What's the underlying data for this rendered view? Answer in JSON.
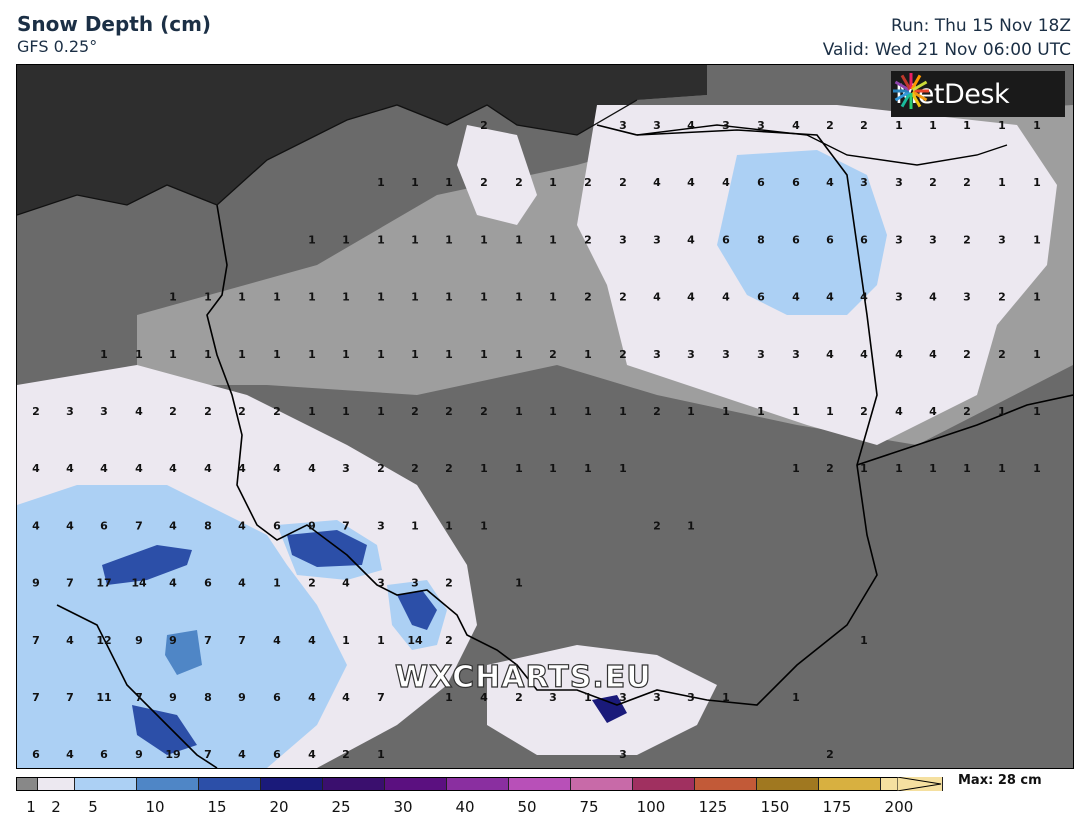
{
  "header": {
    "title": "Snow Depth (cm)",
    "model": "GFS 0.25°",
    "run": "Run: Thu 15 Nov 18Z",
    "valid": "Valid: Wed 21 Nov 06:00 UTC"
  },
  "logo": {
    "text": "MetDesk"
  },
  "watermark": "WXCHARTS.EU",
  "legend": {
    "max_label": "Max: 28 cm",
    "ticks": [
      "1",
      "2",
      "5",
      "10",
      "15",
      "20",
      "25",
      "30",
      "40",
      "50",
      "75",
      "100",
      "125",
      "150",
      "175",
      "200"
    ],
    "colors": [
      "#888888",
      "#ece8f0",
      "#acd0f4",
      "#4f86c6",
      "#2c4fa8",
      "#1a1a7a",
      "#3a0f6e",
      "#5b1080",
      "#8a2fa0",
      "#b850b8",
      "#c86aa8",
      "#a03060",
      "#c25a38",
      "#a07820",
      "#d8b040",
      "#f5e0a0"
    ]
  },
  "map": {
    "rows": [
      {
        "y": 2,
        "vals": [
          [
            483,
            "2"
          ],
          [
            622,
            "3"
          ],
          [
            656,
            "3"
          ],
          [
            690,
            "4"
          ],
          [
            725,
            "3"
          ],
          [
            760,
            "3"
          ],
          [
            795,
            "4"
          ],
          [
            829,
            "2"
          ],
          [
            863,
            "2"
          ],
          [
            898,
            "1"
          ],
          [
            932,
            "1"
          ],
          [
            966,
            "1"
          ],
          [
            1001,
            "1"
          ],
          [
            1036,
            "1"
          ]
        ]
      },
      {
        "y": 3,
        "vals": [
          [
            380,
            "1"
          ],
          [
            414,
            "1"
          ],
          [
            448,
            "1"
          ],
          [
            483,
            "2"
          ],
          [
            518,
            "2"
          ],
          [
            552,
            "1"
          ],
          [
            587,
            "2"
          ],
          [
            622,
            "2"
          ],
          [
            656,
            "4"
          ],
          [
            690,
            "4"
          ],
          [
            725,
            "4"
          ],
          [
            760,
            "6"
          ],
          [
            795,
            "6"
          ],
          [
            829,
            "4"
          ],
          [
            863,
            "3"
          ],
          [
            898,
            "3"
          ],
          [
            932,
            "2"
          ],
          [
            966,
            "2"
          ],
          [
            1001,
            "1"
          ],
          [
            1036,
            "1"
          ]
        ]
      },
      {
        "y": 4,
        "vals": [
          [
            311,
            "1"
          ],
          [
            345,
            "1"
          ],
          [
            380,
            "1"
          ],
          [
            414,
            "1"
          ],
          [
            448,
            "1"
          ],
          [
            483,
            "1"
          ],
          [
            518,
            "1"
          ],
          [
            552,
            "1"
          ],
          [
            587,
            "2"
          ],
          [
            622,
            "3"
          ],
          [
            656,
            "3"
          ],
          [
            690,
            "4"
          ],
          [
            725,
            "6"
          ],
          [
            760,
            "8"
          ],
          [
            795,
            "6"
          ],
          [
            829,
            "6"
          ],
          [
            863,
            "6"
          ],
          [
            898,
            "3"
          ],
          [
            932,
            "3"
          ],
          [
            966,
            "2"
          ],
          [
            1001,
            "3"
          ],
          [
            1036,
            "1"
          ]
        ]
      },
      {
        "y": 5,
        "vals": [
          [
            172,
            "1"
          ],
          [
            207,
            "1"
          ],
          [
            241,
            "1"
          ],
          [
            276,
            "1"
          ],
          [
            311,
            "1"
          ],
          [
            345,
            "1"
          ],
          [
            380,
            "1"
          ],
          [
            414,
            "1"
          ],
          [
            448,
            "1"
          ],
          [
            483,
            "1"
          ],
          [
            518,
            "1"
          ],
          [
            552,
            "1"
          ],
          [
            587,
            "2"
          ],
          [
            622,
            "2"
          ],
          [
            656,
            "4"
          ],
          [
            690,
            "4"
          ],
          [
            725,
            "4"
          ],
          [
            760,
            "6"
          ],
          [
            795,
            "4"
          ],
          [
            829,
            "4"
          ],
          [
            863,
            "4"
          ],
          [
            898,
            "3"
          ],
          [
            932,
            "4"
          ],
          [
            966,
            "3"
          ],
          [
            1001,
            "2"
          ],
          [
            1036,
            "1"
          ]
        ]
      },
      {
        "y": 6,
        "vals": [
          [
            103,
            "1"
          ],
          [
            138,
            "1"
          ],
          [
            172,
            "1"
          ],
          [
            207,
            "1"
          ],
          [
            241,
            "1"
          ],
          [
            276,
            "1"
          ],
          [
            311,
            "1"
          ],
          [
            345,
            "1"
          ],
          [
            380,
            "1"
          ],
          [
            414,
            "1"
          ],
          [
            448,
            "1"
          ],
          [
            483,
            "1"
          ],
          [
            518,
            "1"
          ],
          [
            552,
            "2"
          ],
          [
            587,
            "1"
          ],
          [
            622,
            "2"
          ],
          [
            656,
            "3"
          ],
          [
            690,
            "3"
          ],
          [
            725,
            "3"
          ],
          [
            760,
            "3"
          ],
          [
            795,
            "3"
          ],
          [
            829,
            "4"
          ],
          [
            863,
            "4"
          ],
          [
            898,
            "4"
          ],
          [
            932,
            "4"
          ],
          [
            966,
            "2"
          ],
          [
            1001,
            "2"
          ],
          [
            1036,
            "1"
          ]
        ]
      },
      {
        "y": 7,
        "vals": [
          [
            35,
            "2"
          ],
          [
            69,
            "3"
          ],
          [
            103,
            "3"
          ],
          [
            138,
            "4"
          ],
          [
            172,
            "2"
          ],
          [
            207,
            "2"
          ],
          [
            241,
            "2"
          ],
          [
            276,
            "2"
          ],
          [
            311,
            "1"
          ],
          [
            345,
            "1"
          ],
          [
            380,
            "1"
          ],
          [
            414,
            "2"
          ],
          [
            448,
            "2"
          ],
          [
            483,
            "2"
          ],
          [
            518,
            "1"
          ],
          [
            552,
            "1"
          ],
          [
            587,
            "1"
          ],
          [
            622,
            "1"
          ],
          [
            656,
            "2"
          ],
          [
            690,
            "1"
          ],
          [
            725,
            "1"
          ],
          [
            760,
            "1"
          ],
          [
            795,
            "1"
          ],
          [
            829,
            "1"
          ],
          [
            863,
            "2"
          ],
          [
            898,
            "4"
          ],
          [
            932,
            "4"
          ],
          [
            966,
            "2"
          ],
          [
            1001,
            "1"
          ],
          [
            1036,
            "1"
          ]
        ]
      },
      {
        "y": 8,
        "vals": [
          [
            35,
            "4"
          ],
          [
            69,
            "4"
          ],
          [
            103,
            "4"
          ],
          [
            138,
            "4"
          ],
          [
            172,
            "4"
          ],
          [
            207,
            "4"
          ],
          [
            241,
            "4"
          ],
          [
            276,
            "4"
          ],
          [
            311,
            "4"
          ],
          [
            345,
            "3"
          ],
          [
            380,
            "2"
          ],
          [
            414,
            "2"
          ],
          [
            448,
            "2"
          ],
          [
            483,
            "1"
          ],
          [
            518,
            "1"
          ],
          [
            552,
            "1"
          ],
          [
            587,
            "1"
          ],
          [
            622,
            "1"
          ],
          [
            795,
            "1"
          ],
          [
            829,
            "2"
          ],
          [
            863,
            "1"
          ],
          [
            898,
            "1"
          ],
          [
            932,
            "1"
          ],
          [
            966,
            "1"
          ],
          [
            1001,
            "1"
          ],
          [
            1036,
            "1"
          ]
        ]
      },
      {
        "y": 9,
        "vals": [
          [
            35,
            "4"
          ],
          [
            69,
            "4"
          ],
          [
            103,
            "6"
          ],
          [
            138,
            "7"
          ],
          [
            172,
            "4"
          ],
          [
            207,
            "8"
          ],
          [
            241,
            "4"
          ],
          [
            276,
            "6"
          ],
          [
            311,
            "9"
          ],
          [
            345,
            "7"
          ],
          [
            380,
            "3"
          ],
          [
            414,
            "1"
          ],
          [
            448,
            "1"
          ],
          [
            483,
            "1"
          ],
          [
            656,
            "2"
          ],
          [
            690,
            "1"
          ]
        ]
      },
      {
        "y": 10,
        "vals": [
          [
            35,
            "9"
          ],
          [
            69,
            "7"
          ],
          [
            103,
            "17"
          ],
          [
            138,
            "14"
          ],
          [
            172,
            "4"
          ],
          [
            207,
            "6"
          ],
          [
            241,
            "4"
          ],
          [
            276,
            "1"
          ],
          [
            311,
            "2"
          ],
          [
            345,
            "4"
          ],
          [
            380,
            "3"
          ],
          [
            414,
            "3"
          ],
          [
            448,
            "2"
          ],
          [
            518,
            "1"
          ]
        ]
      },
      {
        "y": 11,
        "vals": [
          [
            35,
            "7"
          ],
          [
            69,
            "4"
          ],
          [
            103,
            "12"
          ],
          [
            138,
            "9"
          ],
          [
            172,
            "9"
          ],
          [
            207,
            "7"
          ],
          [
            241,
            "7"
          ],
          [
            276,
            "4"
          ],
          [
            311,
            "4"
          ],
          [
            345,
            "1"
          ],
          [
            380,
            "1"
          ],
          [
            414,
            "14"
          ],
          [
            448,
            "2"
          ],
          [
            863,
            "1"
          ]
        ]
      },
      {
        "y": 12,
        "vals": [
          [
            35,
            "7"
          ],
          [
            69,
            "7"
          ],
          [
            103,
            "11"
          ],
          [
            138,
            "7"
          ],
          [
            172,
            "9"
          ],
          [
            207,
            "8"
          ],
          [
            241,
            "9"
          ],
          [
            276,
            "6"
          ],
          [
            311,
            "4"
          ],
          [
            345,
            "4"
          ],
          [
            380,
            "7"
          ],
          [
            448,
            "1"
          ],
          [
            483,
            "4"
          ],
          [
            518,
            "2"
          ],
          [
            552,
            "3"
          ],
          [
            587,
            "1"
          ],
          [
            622,
            "3"
          ],
          [
            656,
            "3"
          ],
          [
            690,
            "3"
          ],
          [
            725,
            "1"
          ],
          [
            795,
            "1"
          ]
        ]
      },
      {
        "y": 13,
        "vals": [
          [
            35,
            "6"
          ],
          [
            69,
            "4"
          ],
          [
            103,
            "6"
          ],
          [
            138,
            "9"
          ],
          [
            172,
            "19"
          ],
          [
            207,
            "7"
          ],
          [
            241,
            "4"
          ],
          [
            276,
            "6"
          ],
          [
            311,
            "4"
          ],
          [
            345,
            "2"
          ],
          [
            380,
            "1"
          ],
          [
            622,
            "3"
          ],
          [
            829,
            "2"
          ]
        ]
      }
    ]
  }
}
